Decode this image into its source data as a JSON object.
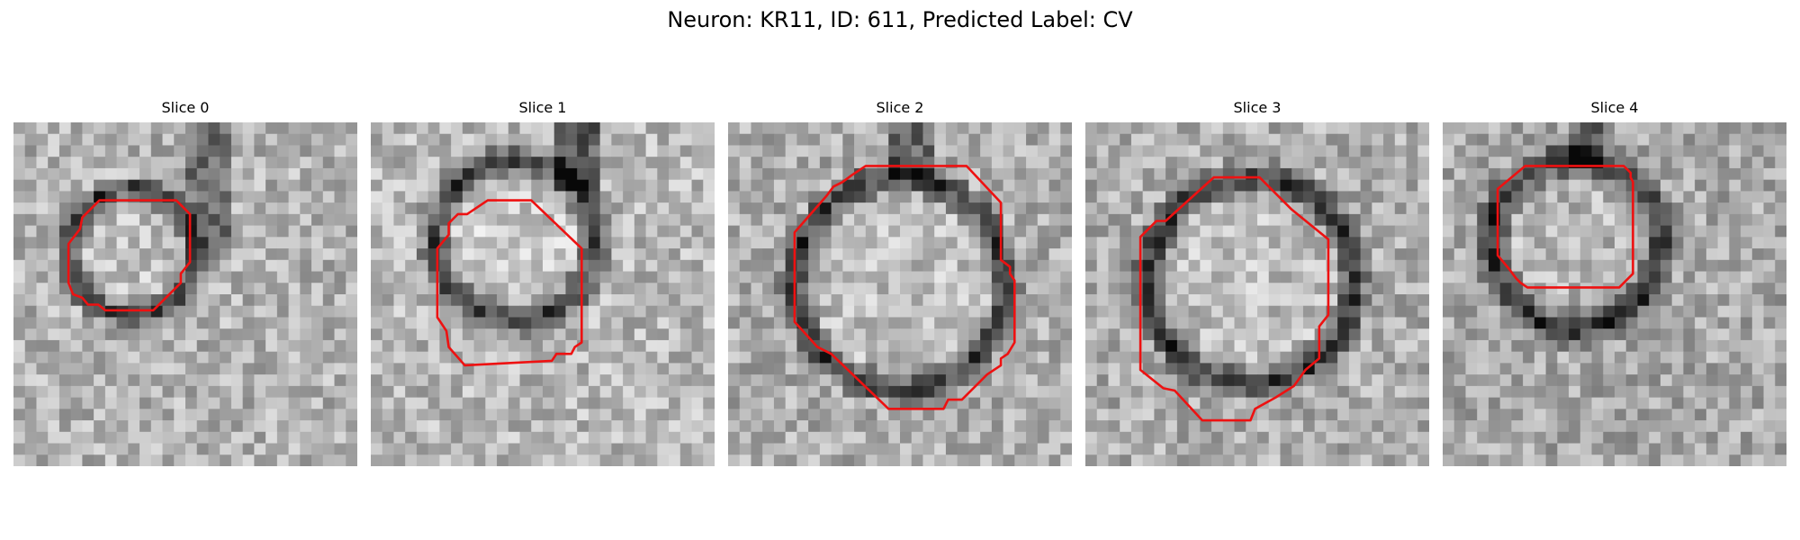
{
  "figure": {
    "title": "Neuron: KR11, ID: 611, Predicted Label: CV"
  },
  "outline_color": "#ee1111",
  "image_style": "grayscale",
  "slices": [
    {
      "title": "Slice 0"
    },
    {
      "title": "Slice 1"
    },
    {
      "title": "Slice 2"
    },
    {
      "title": "Slice 3"
    },
    {
      "title": "Slice 4"
    }
  ]
}
